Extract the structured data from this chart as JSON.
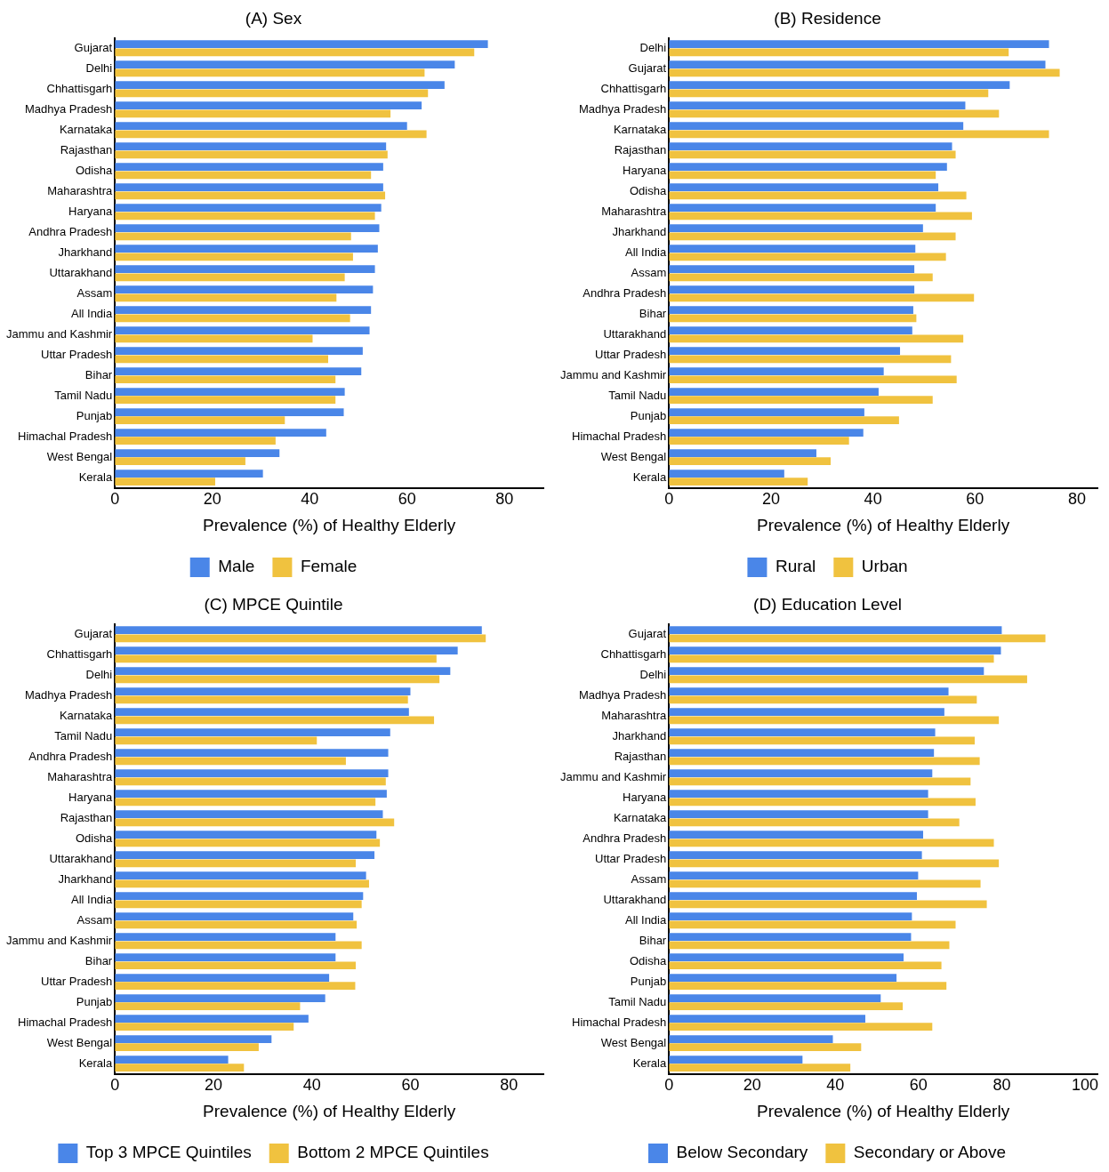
{
  "chart_data": [
    {
      "type": "bar",
      "orientation": "horizontal",
      "title": "(A) Sex",
      "xlabel": "Prevalence (%) of Healthy Elderly",
      "categories": [
        "Gujarat",
        "Delhi",
        "Chhattisgarh",
        "Madhya Pradesh",
        "Karnataka",
        "Rajasthan",
        "Odisha",
        "Maharashtra",
        "Haryana",
        "Andhra Pradesh",
        "Jharkhand",
        "Uttarakhand",
        "Assam",
        "All India",
        "Jammu and Kashmir",
        "Uttar Pradesh",
        "Bihar",
        "Tamil Nadu",
        "Punjab",
        "Himachal Pradesh",
        "West Bengal",
        "Kerala"
      ],
      "series": [
        {
          "name": "Male",
          "color": "#4a86e8",
          "values": [
            76.6,
            69.8,
            67.7,
            63.0,
            60.0,
            55.7,
            55.1,
            55.1,
            54.7,
            54.3,
            54.0,
            53.4,
            53.0,
            52.6,
            52.3,
            50.9,
            50.6,
            47.2,
            47.0,
            43.4,
            33.8,
            30.4
          ]
        },
        {
          "name": "Female",
          "color": "#f0c23f",
          "values": [
            73.8,
            63.6,
            64.3,
            56.6,
            64.0,
            56.0,
            52.6,
            55.5,
            53.4,
            48.5,
            48.9,
            47.2,
            45.5,
            48.3,
            40.6,
            43.8,
            45.3,
            45.3,
            34.9,
            33.0,
            26.8,
            20.6
          ]
        }
      ],
      "xlim": [
        0,
        88
      ],
      "xticks": [
        0,
        20,
        40,
        60,
        80
      ],
      "grid": false,
      "legend": "bottom"
    },
    {
      "type": "bar",
      "orientation": "horizontal",
      "title": "(B) Residence",
      "xlabel": "Prevalence (%) of Healthy Elderly",
      "categories": [
        "Delhi",
        "Gujarat",
        "Chhattisgarh",
        "Madhya Pradesh",
        "Karnataka",
        "Rajasthan",
        "Haryana",
        "Odisha",
        "Maharashtra",
        "Jharkhand",
        "All India",
        "Assam",
        "Andhra Pradesh",
        "Bihar",
        "Uttarakhand",
        "Uttar Pradesh",
        "Jammu and Kashmir",
        "Tamil Nadu",
        "Punjab",
        "Himachal Pradesh",
        "West Bengal",
        "Kerala"
      ],
      "series": [
        {
          "name": "Rural",
          "color": "#4a86e8",
          "values": [
            74.5,
            73.8,
            66.8,
            58.1,
            57.7,
            55.5,
            54.5,
            52.8,
            52.3,
            49.8,
            48.3,
            48.1,
            48.1,
            47.9,
            47.7,
            45.3,
            42.1,
            41.1,
            38.3,
            38.1,
            28.9,
            22.6
          ]
        },
        {
          "name": "Urban",
          "color": "#f0c23f",
          "values": [
            66.6,
            76.6,
            62.6,
            64.7,
            74.5,
            56.2,
            52.3,
            58.3,
            59.4,
            56.2,
            54.3,
            51.7,
            59.8,
            48.5,
            57.7,
            55.3,
            56.4,
            51.7,
            45.1,
            35.3,
            31.7,
            27.2
          ]
        }
      ],
      "xlim": [
        0,
        84
      ],
      "xticks": [
        0,
        20,
        40,
        60,
        80
      ],
      "grid": false,
      "legend": "bottom"
    },
    {
      "type": "bar",
      "orientation": "horizontal",
      "title": "(C) MPCE Quintile",
      "xlabel": "Prevalence (%) of Healthy Elderly",
      "categories": [
        "Gujarat",
        "Chhattisgarh",
        "Delhi",
        "Madhya Pradesh",
        "Karnataka",
        "Tamil Nadu",
        "Andhra Pradesh",
        "Maharashtra",
        "Haryana",
        "Rajasthan",
        "Odisha",
        "Uttarakhand",
        "Jharkhand",
        "All India",
        "Assam",
        "Jammu and Kashmir",
        "Bihar",
        "Uttar Pradesh",
        "Punjab",
        "Himachal Pradesh",
        "West Bengal",
        "Kerala"
      ],
      "series": [
        {
          "name": "Top 3 MPCE Quintiles",
          "color": "#4a86e8",
          "values": [
            74.5,
            69.6,
            68.1,
            60.0,
            59.7,
            55.9,
            55.5,
            55.5,
            55.2,
            54.4,
            53.1,
            52.7,
            51.0,
            50.4,
            48.4,
            44.8,
            44.8,
            43.5,
            42.7,
            39.3,
            31.8,
            23.0
          ]
        },
        {
          "name": "Bottom 2 MPCE Quintiles",
          "color": "#f0c23f",
          "values": [
            75.3,
            65.3,
            65.9,
            59.5,
            64.8,
            41.0,
            46.9,
            55.0,
            52.9,
            56.7,
            53.8,
            48.9,
            51.6,
            50.1,
            49.1,
            50.1,
            48.9,
            48.8,
            37.6,
            36.3,
            29.2,
            26.2
          ]
        }
      ],
      "xlim": [
        0,
        87
      ],
      "xticks": [
        0,
        20,
        40,
        60,
        80
      ],
      "grid": false,
      "legend": "bottom"
    },
    {
      "type": "bar",
      "orientation": "horizontal",
      "title": "(D) Education Level",
      "xlabel": "Prevalence (%) of Healthy Elderly",
      "categories": [
        "Gujarat",
        "Chhattisgarh",
        "Delhi",
        "Madhya Pradesh",
        "Maharashtra",
        "Jharkhand",
        "Rajasthan",
        "Jammu and Kashmir",
        "Haryana",
        "Karnataka",
        "Andhra Pradesh",
        "Uttar Pradesh",
        "Assam",
        "Uttarakhand",
        "All India",
        "Bihar",
        "Odisha",
        "Punjab",
        "Tamil Nadu",
        "Himachal Pradesh",
        "West Bengal",
        "Kerala"
      ],
      "series": [
        {
          "name": "Below Secondary",
          "color": "#4a86e8",
          "values": [
            80.0,
            79.8,
            75.7,
            67.2,
            66.2,
            64.0,
            63.7,
            63.3,
            62.3,
            62.3,
            61.1,
            60.8,
            59.9,
            59.6,
            58.4,
            58.2,
            56.4,
            54.7,
            50.9,
            47.2,
            39.4,
            32.1
          ]
        },
        {
          "name": "Secondary or Above",
          "color": "#f0c23f",
          "values": [
            90.5,
            78.1,
            86.1,
            74.0,
            79.3,
            73.5,
            74.7,
            72.5,
            73.7,
            69.8,
            78.1,
            79.3,
            74.9,
            76.4,
            68.9,
            67.4,
            65.5,
            66.7,
            56.2,
            63.3,
            46.2,
            43.6
          ]
        }
      ],
      "xlim": [
        0,
        103
      ],
      "xticks": [
        0,
        20,
        40,
        60,
        80,
        100
      ],
      "grid": false,
      "legend": "bottom"
    }
  ]
}
